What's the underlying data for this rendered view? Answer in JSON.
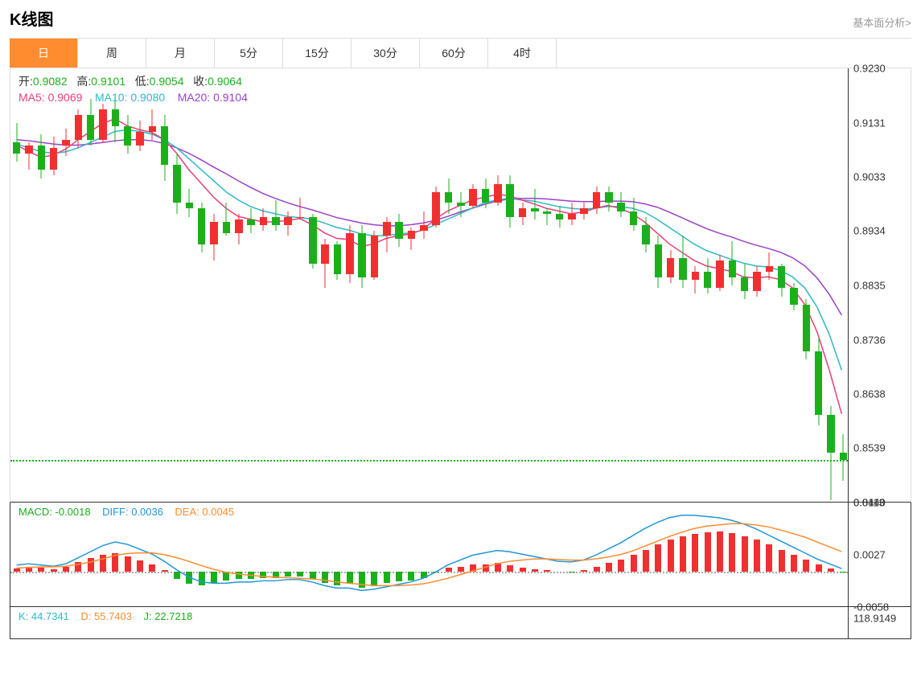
{
  "header": {
    "title": "K线图",
    "fundamental_link": "基本面分析>"
  },
  "tabs": [
    {
      "label": "日",
      "active": true
    },
    {
      "label": "周",
      "active": false
    },
    {
      "label": "月",
      "active": false
    },
    {
      "label": "5分",
      "active": false
    },
    {
      "label": "15分",
      "active": false
    },
    {
      "label": "30分",
      "active": false
    },
    {
      "label": "60分",
      "active": false
    },
    {
      "label": "4时",
      "active": false
    }
  ],
  "ohlc": {
    "open_label": "开:",
    "open": "0.9082",
    "high_label": "高:",
    "high": "0.9101",
    "low_label": "低:",
    "low": "0.9054",
    "close_label": "收:",
    "close": "0.9064"
  },
  "ma": {
    "ma5_label": "MA5:",
    "ma5": "0.9069",
    "ma10_label": "MA10:",
    "ma10": "0.9080",
    "ma20_label": "MA20:",
    "ma20": "0.9104"
  },
  "colors": {
    "up": "#f03030",
    "down": "#1bb01b",
    "ma5": "#e83f7c",
    "ma10": "#2fb8c6",
    "ma20": "#9a41c9",
    "diff": "#2196d8",
    "dea": "#ff8c2e",
    "tab_active": "#ff8c2e",
    "price_tag": "#1bb01b"
  },
  "main_chart": {
    "ymin": 0.844,
    "ymax": 0.923,
    "yticks": [
      "0.9230",
      "0.9131",
      "0.9033",
      "0.8934",
      "0.8835",
      "0.8736",
      "0.8638",
      "0.8539",
      "0.8440"
    ],
    "current_price": "0.8517",
    "current_price_val": 0.8517,
    "candles": [
      {
        "o": 0.9095,
        "h": 0.913,
        "l": 0.906,
        "c": 0.9075
      },
      {
        "o": 0.9075,
        "h": 0.9095,
        "l": 0.9045,
        "c": 0.909
      },
      {
        "o": 0.909,
        "h": 0.911,
        "l": 0.903,
        "c": 0.9045
      },
      {
        "o": 0.9045,
        "h": 0.9105,
        "l": 0.9035,
        "c": 0.9085
      },
      {
        "o": 0.909,
        "h": 0.912,
        "l": 0.907,
        "c": 0.91
      },
      {
        "o": 0.91,
        "h": 0.9155,
        "l": 0.9085,
        "c": 0.9145
      },
      {
        "o": 0.9145,
        "h": 0.9175,
        "l": 0.909,
        "c": 0.91
      },
      {
        "o": 0.91,
        "h": 0.9165,
        "l": 0.9095,
        "c": 0.9155
      },
      {
        "o": 0.9155,
        "h": 0.9175,
        "l": 0.9095,
        "c": 0.9125
      },
      {
        "o": 0.9125,
        "h": 0.9145,
        "l": 0.9075,
        "c": 0.909
      },
      {
        "o": 0.909,
        "h": 0.9135,
        "l": 0.908,
        "c": 0.9115
      },
      {
        "o": 0.9115,
        "h": 0.9155,
        "l": 0.91,
        "c": 0.9125
      },
      {
        "o": 0.9125,
        "h": 0.9145,
        "l": 0.9025,
        "c": 0.9055
      },
      {
        "o": 0.9055,
        "h": 0.9075,
        "l": 0.8965,
        "c": 0.8985
      },
      {
        "o": 0.8985,
        "h": 0.901,
        "l": 0.896,
        "c": 0.8975
      },
      {
        "o": 0.8975,
        "h": 0.8985,
        "l": 0.8895,
        "c": 0.891
      },
      {
        "o": 0.891,
        "h": 0.8965,
        "l": 0.888,
        "c": 0.895
      },
      {
        "o": 0.895,
        "h": 0.8985,
        "l": 0.8925,
        "c": 0.893
      },
      {
        "o": 0.893,
        "h": 0.8965,
        "l": 0.891,
        "c": 0.8955
      },
      {
        "o": 0.8955,
        "h": 0.8975,
        "l": 0.893,
        "c": 0.8945
      },
      {
        "o": 0.8945,
        "h": 0.8975,
        "l": 0.8935,
        "c": 0.896
      },
      {
        "o": 0.896,
        "h": 0.899,
        "l": 0.8935,
        "c": 0.8945
      },
      {
        "o": 0.8945,
        "h": 0.897,
        "l": 0.8925,
        "c": 0.896
      },
      {
        "o": 0.896,
        "h": 0.8995,
        "l": 0.8955,
        "c": 0.896
      },
      {
        "o": 0.896,
        "h": 0.8965,
        "l": 0.8865,
        "c": 0.8875
      },
      {
        "o": 0.8875,
        "h": 0.892,
        "l": 0.883,
        "c": 0.891
      },
      {
        "o": 0.891,
        "h": 0.8915,
        "l": 0.8845,
        "c": 0.8855
      },
      {
        "o": 0.8855,
        "h": 0.8945,
        "l": 0.884,
        "c": 0.893
      },
      {
        "o": 0.893,
        "h": 0.8945,
        "l": 0.883,
        "c": 0.885
      },
      {
        "o": 0.885,
        "h": 0.8935,
        "l": 0.8845,
        "c": 0.8925
      },
      {
        "o": 0.8925,
        "h": 0.896,
        "l": 0.8895,
        "c": 0.895
      },
      {
        "o": 0.895,
        "h": 0.8965,
        "l": 0.8905,
        "c": 0.892
      },
      {
        "o": 0.892,
        "h": 0.894,
        "l": 0.89,
        "c": 0.8935
      },
      {
        "o": 0.8935,
        "h": 0.897,
        "l": 0.892,
        "c": 0.8945
      },
      {
        "o": 0.8945,
        "h": 0.9015,
        "l": 0.894,
        "c": 0.9005
      },
      {
        "o": 0.9005,
        "h": 0.903,
        "l": 0.8965,
        "c": 0.8985
      },
      {
        "o": 0.8985,
        "h": 0.9005,
        "l": 0.896,
        "c": 0.898
      },
      {
        "o": 0.898,
        "h": 0.902,
        "l": 0.8975,
        "c": 0.901
      },
      {
        "o": 0.901,
        "h": 0.903,
        "l": 0.8975,
        "c": 0.8985
      },
      {
        "o": 0.8985,
        "h": 0.9035,
        "l": 0.898,
        "c": 0.902
      },
      {
        "o": 0.902,
        "h": 0.9035,
        "l": 0.894,
        "c": 0.896
      },
      {
        "o": 0.896,
        "h": 0.8985,
        "l": 0.8945,
        "c": 0.8975
      },
      {
        "o": 0.8975,
        "h": 0.901,
        "l": 0.8955,
        "c": 0.897
      },
      {
        "o": 0.897,
        "h": 0.8975,
        "l": 0.8945,
        "c": 0.8965
      },
      {
        "o": 0.8965,
        "h": 0.898,
        "l": 0.894,
        "c": 0.8955
      },
      {
        "o": 0.8955,
        "h": 0.8985,
        "l": 0.8945,
        "c": 0.8965
      },
      {
        "o": 0.8965,
        "h": 0.8985,
        "l": 0.8955,
        "c": 0.8975
      },
      {
        "o": 0.8975,
        "h": 0.9015,
        "l": 0.8965,
        "c": 0.9005
      },
      {
        "o": 0.9005,
        "h": 0.9015,
        "l": 0.897,
        "c": 0.8985
      },
      {
        "o": 0.8985,
        "h": 0.9005,
        "l": 0.896,
        "c": 0.897
      },
      {
        "o": 0.897,
        "h": 0.8995,
        "l": 0.8935,
        "c": 0.8945
      },
      {
        "o": 0.8945,
        "h": 0.896,
        "l": 0.8895,
        "c": 0.891
      },
      {
        "o": 0.891,
        "h": 0.8925,
        "l": 0.883,
        "c": 0.885
      },
      {
        "o": 0.885,
        "h": 0.89,
        "l": 0.884,
        "c": 0.8885
      },
      {
        "o": 0.8885,
        "h": 0.8925,
        "l": 0.883,
        "c": 0.8845
      },
      {
        "o": 0.8845,
        "h": 0.887,
        "l": 0.882,
        "c": 0.886
      },
      {
        "o": 0.886,
        "h": 0.8885,
        "l": 0.882,
        "c": 0.883
      },
      {
        "o": 0.883,
        "h": 0.889,
        "l": 0.8825,
        "c": 0.888
      },
      {
        "o": 0.888,
        "h": 0.8915,
        "l": 0.8835,
        "c": 0.885
      },
      {
        "o": 0.885,
        "h": 0.8875,
        "l": 0.881,
        "c": 0.8825
      },
      {
        "o": 0.8825,
        "h": 0.887,
        "l": 0.8815,
        "c": 0.886
      },
      {
        "o": 0.886,
        "h": 0.8895,
        "l": 0.8845,
        "c": 0.887
      },
      {
        "o": 0.887,
        "h": 0.8875,
        "l": 0.8815,
        "c": 0.883
      },
      {
        "o": 0.883,
        "h": 0.884,
        "l": 0.879,
        "c": 0.88
      },
      {
        "o": 0.88,
        "h": 0.881,
        "l": 0.87,
        "c": 0.8715
      },
      {
        "o": 0.8715,
        "h": 0.874,
        "l": 0.858,
        "c": 0.86
      },
      {
        "o": 0.86,
        "h": 0.8615,
        "l": 0.8445,
        "c": 0.853
      },
      {
        "o": 0.853,
        "h": 0.8565,
        "l": 0.848,
        "c": 0.8517
      }
    ],
    "ma5_line": [
      0.909,
      0.9078,
      0.9068,
      0.9072,
      0.9083,
      0.91,
      0.9115,
      0.913,
      0.9138,
      0.9125,
      0.9118,
      0.9113,
      0.91,
      0.9075,
      0.9045,
      0.902,
      0.8995,
      0.8975,
      0.896,
      0.8955,
      0.895,
      0.895,
      0.8953,
      0.8956,
      0.8945,
      0.893,
      0.892,
      0.8918,
      0.8905,
      0.891,
      0.892,
      0.8925,
      0.8928,
      0.8936,
      0.8955,
      0.897,
      0.898,
      0.899,
      0.8995,
      0.9,
      0.8998,
      0.899,
      0.8983,
      0.8975,
      0.897,
      0.8965,
      0.8968,
      0.8975,
      0.898,
      0.8975,
      0.8965,
      0.895,
      0.893,
      0.891,
      0.8895,
      0.888,
      0.887,
      0.8865,
      0.886,
      0.885,
      0.8848,
      0.885,
      0.8845,
      0.883,
      0.88,
      0.875,
      0.868,
      0.86
    ],
    "ma10_line": [
      0.9092,
      0.9085,
      0.9078,
      0.9075,
      0.9078,
      0.9085,
      0.9095,
      0.9105,
      0.9115,
      0.9118,
      0.9115,
      0.911,
      0.91,
      0.9085,
      0.9065,
      0.9045,
      0.9025,
      0.9005,
      0.899,
      0.8978,
      0.897,
      0.8965,
      0.896,
      0.8958,
      0.8955,
      0.8948,
      0.894,
      0.8935,
      0.8928,
      0.8925,
      0.8925,
      0.8928,
      0.893,
      0.8935,
      0.8945,
      0.8955,
      0.8965,
      0.8975,
      0.8985,
      0.899,
      0.8993,
      0.899,
      0.8988,
      0.8983,
      0.8978,
      0.8975,
      0.8973,
      0.8975,
      0.8978,
      0.8978,
      0.8975,
      0.8968,
      0.8955,
      0.894,
      0.8925,
      0.891,
      0.8898,
      0.889,
      0.8882,
      0.8875,
      0.887,
      0.8868,
      0.8862,
      0.885,
      0.883,
      0.8795,
      0.8745,
      0.868
    ],
    "ma20_line": [
      0.91,
      0.9098,
      0.9095,
      0.9092,
      0.909,
      0.909,
      0.9092,
      0.9095,
      0.9098,
      0.91,
      0.91,
      0.9098,
      0.9093,
      0.9085,
      0.9075,
      0.9063,
      0.905,
      0.9038,
      0.9025,
      0.9013,
      0.9002,
      0.8993,
      0.8985,
      0.8978,
      0.8972,
      0.8965,
      0.8958,
      0.8953,
      0.8948,
      0.8945,
      0.8943,
      0.8943,
      0.8945,
      0.8948,
      0.8953,
      0.896,
      0.8968,
      0.8975,
      0.8982,
      0.8988,
      0.8992,
      0.8993,
      0.8993,
      0.8992,
      0.899,
      0.8988,
      0.8987,
      0.8987,
      0.8988,
      0.8988,
      0.8987,
      0.8983,
      0.8977,
      0.8968,
      0.8958,
      0.8948,
      0.8938,
      0.893,
      0.8923,
      0.8915,
      0.8908,
      0.8902,
      0.8895,
      0.8885,
      0.887,
      0.8848,
      0.8818,
      0.878
    ]
  },
  "macd": {
    "label": "MACD:",
    "val": "-0.0018",
    "diff_label": "DIFF:",
    "diff": "0.0036",
    "dea_label": "DEA:",
    "dea": "0.0045",
    "ymin": -0.0058,
    "ymax": 0.0113,
    "yticks": [
      "0.0113",
      "0.0027",
      "-0.0058"
    ],
    "bars": [
      0.0005,
      0.0008,
      0.0006,
      0.0004,
      0.0008,
      0.0016,
      0.0022,
      0.0028,
      0.003,
      0.0025,
      0.0018,
      0.0012,
      0.0002,
      -0.0012,
      -0.002,
      -0.0022,
      -0.0018,
      -0.0015,
      -0.0012,
      -0.0012,
      -0.001,
      -0.001,
      -0.0008,
      -0.0008,
      -0.0012,
      -0.0018,
      -0.0022,
      -0.002,
      -0.0026,
      -0.0022,
      -0.0018,
      -0.0016,
      -0.0014,
      -0.001,
      -0.0002,
      0.0006,
      0.0008,
      0.0012,
      0.0012,
      0.0014,
      0.001,
      0.0006,
      0.0004,
      0.0002,
      0.0,
      -0.0001,
      0.0002,
      0.0008,
      0.0014,
      0.002,
      0.0028,
      0.0036,
      0.0044,
      0.0052,
      0.0058,
      0.0062,
      0.0064,
      0.0065,
      0.0063,
      0.0058,
      0.0052,
      0.0044,
      0.0036,
      0.0028,
      0.002,
      0.0012,
      0.0005,
      -0.0002
    ],
    "diff_line": [
      0.001,
      0.0012,
      0.001,
      0.0008,
      0.0012,
      0.0022,
      0.0032,
      0.0042,
      0.0048,
      0.0044,
      0.0036,
      0.0028,
      0.0016,
      0.0002,
      -0.001,
      -0.0018,
      -0.002,
      -0.002,
      -0.0018,
      -0.0018,
      -0.0016,
      -0.0016,
      -0.0014,
      -0.0014,
      -0.0018,
      -0.0024,
      -0.0028,
      -0.0028,
      -0.0032,
      -0.003,
      -0.0026,
      -0.0022,
      -0.0018,
      -0.0012,
      -0.0002,
      0.001,
      0.0018,
      0.0026,
      0.003,
      0.0034,
      0.0032,
      0.0028,
      0.0024,
      0.002,
      0.0016,
      0.0015,
      0.0018,
      0.0026,
      0.0036,
      0.0046,
      0.0058,
      0.007,
      0.008,
      0.0088,
      0.0092,
      0.0092,
      0.009,
      0.0088,
      0.0084,
      0.0078,
      0.007,
      0.006,
      0.005,
      0.004,
      0.003,
      0.002,
      0.0012,
      0.0004
    ],
    "dea_line": [
      0.0005,
      0.0006,
      0.0007,
      0.0007,
      0.0008,
      0.0011,
      0.0015,
      0.002,
      0.0026,
      0.0029,
      0.003,
      0.003,
      0.0027,
      0.0022,
      0.0016,
      0.0009,
      0.0003,
      -0.0002,
      -0.0005,
      -0.0007,
      -0.0009,
      -0.001,
      -0.0011,
      -0.0012,
      -0.0013,
      -0.0015,
      -0.0018,
      -0.002,
      -0.0022,
      -0.0024,
      -0.0024,
      -0.0024,
      -0.0023,
      -0.0021,
      -0.0017,
      -0.0012,
      -0.0006,
      0.0,
      0.0006,
      0.0012,
      0.0016,
      0.0018,
      0.002,
      0.002,
      0.0019,
      0.0018,
      0.0018,
      0.002,
      0.0023,
      0.0027,
      0.0033,
      0.0041,
      0.0049,
      0.0057,
      0.0064,
      0.007,
      0.0074,
      0.0076,
      0.0078,
      0.0078,
      0.0076,
      0.0073,
      0.0068,
      0.0062,
      0.0056,
      0.0048,
      0.004,
      0.0032
    ]
  },
  "kdj": {
    "k_label": "K:",
    "k": "44.7341",
    "d_label": "D:",
    "d": "55.7403",
    "j_label": "J:",
    "j": "22.7218",
    "ytick": "118.9149",
    "height": 40
  }
}
